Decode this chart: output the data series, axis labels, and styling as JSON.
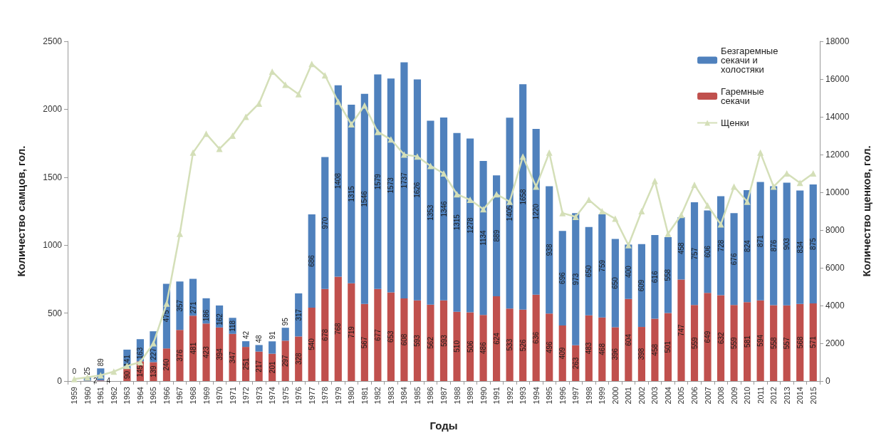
{
  "chart_data": {
    "type": "bar",
    "stacked": true,
    "xlabel": "Годы",
    "ylabel": "Количество самцов, гол.",
    "y2label": "Количество щенков, гол.",
    "categories": [
      "1959",
      "1960",
      "1961",
      "1962",
      "1963",
      "1964",
      "1965",
      "1966",
      "1967",
      "1968",
      "1969",
      "1970",
      "1971",
      "1972",
      "1973",
      "1974",
      "1975",
      "1976",
      "1977",
      "1978",
      "1979",
      "1980",
      "1981",
      "1982",
      "1983",
      "1984",
      "1985",
      "1986",
      "1987",
      "1988",
      "1989",
      "1990",
      "1991",
      "1992",
      "1993",
      "1994",
      "1995",
      "1996",
      "1997",
      "1998",
      "1999",
      "2000",
      "2001",
      "2002",
      "2003",
      "2004",
      "2005",
      "2006",
      "2007",
      "2008",
      "2009",
      "2010",
      "2011",
      "2012",
      "2013",
      "2014",
      "2015"
    ],
    "series": [
      {
        "name": "Гаремные секачи",
        "color": "#c0504d",
        "values": [
          0,
          2,
          4,
          null,
          90,
          145,
          139,
          240,
          376,
          481,
          423,
          394,
          347,
          251,
          217,
          201,
          297,
          328,
          540,
          678,
          768,
          719,
          567,
          677,
          653,
          608,
          593,
          562,
          593,
          510,
          506,
          486,
          624,
          533,
          526,
          636,
          496,
          409,
          263,
          483,
          468,
          396,
          604,
          398,
          458,
          501,
          747,
          559,
          649,
          632,
          559,
          581,
          594,
          558,
          557,
          568,
          571
        ],
        "value_labels": [
          "0",
          "2",
          "4",
          null,
          "90",
          "145",
          "139",
          "240",
          "376",
          "481",
          "423",
          "394",
          "347",
          "251",
          "217",
          "201",
          "297",
          "328",
          "540",
          "678",
          "768",
          "719",
          "567",
          "677",
          "653",
          "608",
          "593",
          "562",
          "593",
          "510",
          "506",
          "486",
          "624",
          "533",
          "526",
          "636",
          "496",
          "409",
          "263",
          "483",
          "468",
          "396",
          "604",
          "398",
          "458",
          "501",
          "747",
          "559",
          "649",
          "632",
          "559",
          "581",
          "594",
          "558",
          "557",
          "568",
          "571"
        ]
      },
      {
        "name": "Безгаремные секачи и холостяки",
        "color": "#4f81bd",
        "values": [
          0,
          25,
          89,
          null,
          141,
          163,
          227,
          475,
          357,
          271,
          186,
          162,
          118,
          42,
          48,
          91,
          95,
          317,
          686,
          970,
          1408,
          1315,
          1546,
          1579,
          1573,
          1737,
          1626,
          1353,
          1346,
          1315,
          1278,
          1134,
          889,
          1405,
          1658,
          1220,
          938,
          696,
          973,
          650,
          759,
          650,
          400,
          609,
          616,
          558,
          458,
          757,
          606,
          728,
          676,
          824,
          871,
          876,
          903,
          834,
          875
        ],
        "value_labels": [
          null,
          "25",
          "89",
          null,
          "141",
          "163",
          "227",
          "475",
          "357",
          "271",
          "186",
          "162",
          "118",
          "42",
          "48",
          "91",
          "95",
          "317",
          "686",
          "970",
          "1408",
          "1315",
          "1546",
          "1579",
          "1573",
          "1737",
          "1626",
          "1353",
          "1346",
          "1315",
          "1278",
          "1134",
          "889",
          "1405",
          "1658",
          "1220",
          "938",
          "696",
          "973",
          "650",
          "759",
          "650",
          "400",
          "609",
          "616",
          "558",
          "458",
          "757",
          "606",
          "728",
          "676",
          "824",
          "871",
          "876",
          "903",
          "834",
          "875"
        ]
      },
      {
        "name": "Щенки",
        "type": "line",
        "axis": "y2",
        "color": "#d4dfb8",
        "marker": "triangle",
        "values": [
          100,
          200,
          300,
          500,
          800,
          1000,
          2000,
          4100,
          7800,
          12100,
          13100,
          12300,
          13000,
          14000,
          14700,
          16400,
          15700,
          15200,
          16800,
          16200,
          14800,
          13600,
          14600,
          13200,
          12800,
          12000,
          11900,
          11400,
          11000,
          9900,
          9600,
          9100,
          9900,
          9500,
          11900,
          10300,
          12100,
          8900,
          8700,
          9600,
          9000,
          8600,
          7200,
          9000,
          10600,
          7800,
          8800,
          10400,
          9300,
          8300,
          10300,
          9500,
          12100,
          10300,
          11000,
          10500,
          11000
        ]
      }
    ],
    "ylim": [
      0,
      2500
    ],
    "yticks": [
      0,
      500,
      1000,
      1500,
      2000,
      2500
    ],
    "y2lim": [
      0,
      18000
    ],
    "y2ticks": [
      0,
      2000,
      4000,
      6000,
      8000,
      10000,
      12000,
      14000,
      16000,
      18000
    ],
    "legend": "top right",
    "grid": false
  }
}
